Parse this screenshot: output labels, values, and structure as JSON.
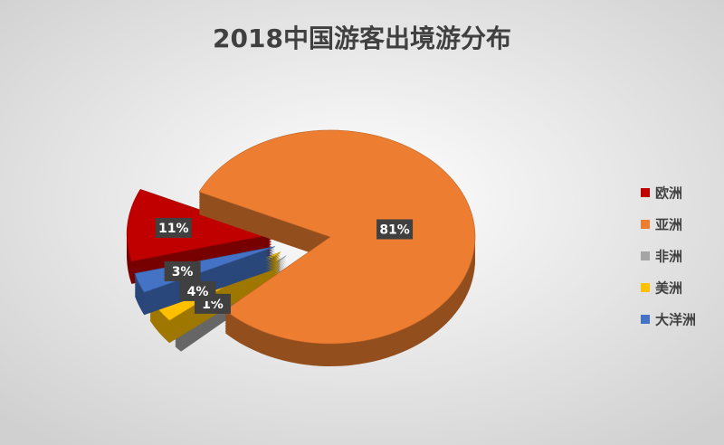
{
  "chart_data": {
    "type": "pie3d",
    "title": "2018中国游客出境游分布",
    "categories": [
      "欧洲",
      "亚洲",
      "非洲",
      "美洲",
      "大洋洲"
    ],
    "values": [
      11,
      81,
      1,
      4,
      3
    ],
    "value_labels": [
      "11%",
      "81%",
      "1%",
      "4%",
      "3%"
    ],
    "colors": [
      "#c00000",
      "#ed7d31",
      "#a5a5a5",
      "#ffc000",
      "#4472c4"
    ],
    "legend": "right"
  }
}
